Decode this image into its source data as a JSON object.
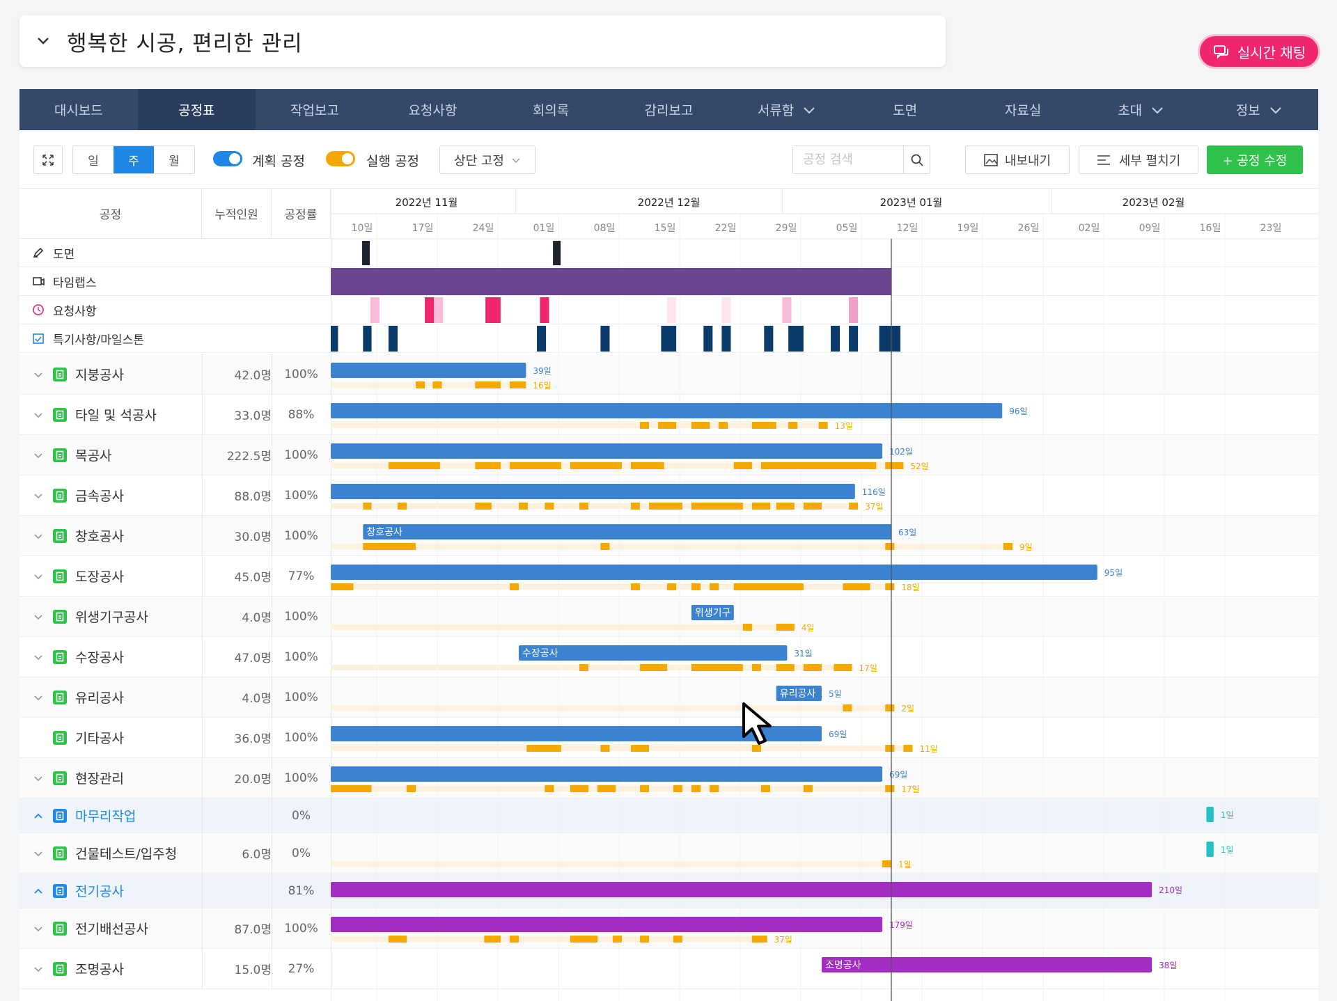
{
  "header": {
    "title": "행복한 시공, 편리한 관리",
    "chat_label": "실시간 채팅"
  },
  "nav": {
    "items": [
      {
        "label": "대시보드",
        "dropdown": false,
        "active": false
      },
      {
        "label": "공정표",
        "dropdown": false,
        "active": true
      },
      {
        "label": "작업보고",
        "dropdown": false,
        "active": false
      },
      {
        "label": "요청사항",
        "dropdown": false,
        "active": false
      },
      {
        "label": "회의록",
        "dropdown": false,
        "active": false
      },
      {
        "label": "감리보고",
        "dropdown": false,
        "active": false
      },
      {
        "label": "서류함",
        "dropdown": true,
        "active": false
      },
      {
        "label": "도면",
        "dropdown": false,
        "active": false
      },
      {
        "label": "자료실",
        "dropdown": false,
        "active": false
      },
      {
        "label": "초대",
        "dropdown": true,
        "active": false
      },
      {
        "label": "정보",
        "dropdown": true,
        "active": false
      }
    ]
  },
  "toolbar": {
    "view_day": "일",
    "view_week": "주",
    "view_month": "월",
    "plan_label": "계획 공정",
    "actual_label": "실행 공정",
    "fix_label": "상단 고정",
    "search_placeholder": "공정 검색",
    "export_label": "내보내기",
    "expand_label": "세부 펼치기",
    "edit_label": "+ 공정 수정"
  },
  "table_headers": {
    "name": "공정",
    "workers": "누적인원",
    "rate": "공정률"
  },
  "timeline": {
    "months": [
      {
        "label": "2022년 11월",
        "tick": 1.5
      },
      {
        "label": "2022년 12월",
        "tick": 5.5
      },
      {
        "label": "2023년 01월",
        "tick": 9.5
      },
      {
        "label": "2023년 02월",
        "tick": 13.5
      }
    ],
    "weeks": [
      "10일",
      "17일",
      "24일",
      "01일",
      "08일",
      "15일",
      "22일",
      "29일",
      "05일",
      "12일",
      "19일",
      "26일",
      "02일",
      "09일",
      "16일",
      "23일"
    ],
    "today_week": 9.0
  },
  "special_rows": [
    {
      "label": "도면",
      "icon": "pen-icon",
      "icon_color": "#333"
    },
    {
      "label": "타임랩스",
      "icon": "video-icon",
      "icon_color": "#333"
    },
    {
      "label": "요청사항",
      "icon": "request-icon",
      "icon_color": "#e0398a"
    },
    {
      "label": "특기사항/마일스톤",
      "icon": "calendar-check-icon",
      "icon_color": "#1f87e5"
    }
  ],
  "special_marks": {
    "drawings": [
      0.15,
      3.3
    ],
    "timelapse": [
      0.0,
      9.0
    ],
    "requests": [
      [
        0.4,
        0.55,
        "#f8bbd9"
      ],
      [
        1.3,
        1.45,
        "#f0266e"
      ],
      [
        1.45,
        1.6,
        "#f8bbd9"
      ],
      [
        2.3,
        2.55,
        "#f0266e"
      ],
      [
        3.2,
        3.35,
        "#f0266e"
      ],
      [
        5.3,
        5.45,
        "#fde4ef"
      ],
      [
        6.2,
        6.35,
        "#fde4ef"
      ],
      [
        7.2,
        7.35,
        "#f8bbd9"
      ],
      [
        8.3,
        8.45,
        "#f0a0c8"
      ]
    ],
    "milestones": [
      [
        0.0,
        0.12
      ],
      [
        0.28,
        0.42
      ],
      [
        0.7,
        0.85
      ],
      [
        3.15,
        3.3
      ],
      [
        4.2,
        4.35
      ],
      [
        5.2,
        5.45
      ],
      [
        5.9,
        6.05
      ],
      [
        6.2,
        6.35
      ],
      [
        6.9,
        7.05
      ],
      [
        7.3,
        7.55
      ],
      [
        8.0,
        8.15
      ],
      [
        8.3,
        8.45
      ],
      [
        8.8,
        9.15
      ]
    ]
  },
  "tasks": [
    {
      "name": "지붕공사",
      "workers": "42.0명",
      "rate": "100%",
      "caret": "down",
      "icon_color": "#2ec24a",
      "plan": [
        0.0,
        2.97
      ],
      "plan_days": "39일",
      "plan_color": "#3b82d0",
      "bar_label": "",
      "actual": [
        [
          1.15,
          1.3
        ],
        [
          1.43,
          1.58
        ],
        [
          2.13,
          2.55
        ],
        [
          2.7,
          2.97
        ]
      ],
      "actual_days": "16일"
    },
    {
      "name": "타일 및 석공사",
      "workers": "33.0명",
      "rate": "88%",
      "caret": "down",
      "icon_color": "#2ec24a",
      "plan": [
        0.0,
        10.83
      ],
      "plan_days": "96일",
      "plan_color": "#3b82d0",
      "bar_label": "",
      "actual": [
        [
          4.85,
          5.0
        ],
        [
          5.15,
          5.45
        ],
        [
          5.7,
          6.0
        ],
        [
          6.15,
          6.3
        ],
        [
          6.7,
          7.1
        ],
        [
          7.3,
          7.45
        ],
        [
          7.8,
          7.95
        ]
      ],
      "actual_days": "13일"
    },
    {
      "name": "목공사",
      "workers": "222.5명",
      "rate": "100%",
      "caret": "down",
      "icon_color": "#2ec24a",
      "plan": [
        0.0,
        8.85
      ],
      "plan_days": "102일",
      "plan_color": "#3b82d0",
      "bar_label": "",
      "actual": [
        [
          0.7,
          1.55
        ],
        [
          2.13,
          2.55
        ],
        [
          2.7,
          3.55
        ],
        [
          3.7,
          4.55
        ],
        [
          4.7,
          5.25
        ],
        [
          6.4,
          6.7
        ],
        [
          6.85,
          8.75
        ],
        [
          8.9,
          9.2
        ]
      ],
      "actual_days": "52일"
    },
    {
      "name": "금속공사",
      "workers": "88.0명",
      "rate": "100%",
      "caret": "down",
      "icon_color": "#2ec24a",
      "plan": [
        0.0,
        8.4
      ],
      "plan_days": "116일",
      "plan_color": "#3b82d0",
      "bar_label": "",
      "actual": [
        [
          0.28,
          0.42
        ],
        [
          0.85,
          1.0
        ],
        [
          2.13,
          2.4
        ],
        [
          2.85,
          3.0
        ],
        [
          3.28,
          3.43
        ],
        [
          3.85,
          4.0
        ],
        [
          4.7,
          4.85
        ],
        [
          5.0,
          5.55
        ],
        [
          5.7,
          6.55
        ],
        [
          6.7,
          7.0
        ],
        [
          7.1,
          7.4
        ],
        [
          7.55,
          7.85
        ],
        [
          8.3,
          8.45
        ]
      ],
      "actual_days": "37일"
    },
    {
      "name": "창호공사",
      "workers": "30.0명",
      "rate": "100%",
      "caret": "down",
      "icon_color": "#2ec24a",
      "plan": [
        0.28,
        9.0
      ],
      "plan_days": "63일",
      "plan_color": "#3b82d0",
      "bar_label": "창호공사",
      "actual": [
        [
          0.28,
          1.15
        ],
        [
          4.2,
          4.35
        ],
        [
          8.9,
          9.05
        ],
        [
          10.85,
          11.0
        ]
      ],
      "actual_days": "9일"
    },
    {
      "name": "도장공사",
      "workers": "45.0명",
      "rate": "77%",
      "caret": "down",
      "icon_color": "#2ec24a",
      "plan": [
        0.0,
        12.4
      ],
      "plan_days": "95일",
      "plan_color": "#3b82d0",
      "bar_label": "",
      "actual": [
        [
          0.0,
          0.12
        ],
        [
          2.7,
          2.85
        ],
        [
          4.7,
          4.85
        ],
        [
          5.3,
          5.45
        ],
        [
          5.7,
          5.85
        ],
        [
          6.0,
          6.15
        ],
        [
          6.4,
          7.55
        ],
        [
          8.2,
          8.65
        ],
        [
          8.9,
          9.05
        ]
      ],
      "actual_days": "18일"
    },
    {
      "name": "위생기구공사",
      "workers": "4.0명",
      "rate": "100%",
      "caret": "down",
      "icon_color": "#2ec24a",
      "plan": [
        5.7,
        6.4
      ],
      "plan_days": "",
      "plan_color": "#3b82d0",
      "bar_label": "위생기구",
      "actual": [
        [
          6.55,
          6.7
        ],
        [
          7.1,
          7.4
        ]
      ],
      "actual_days": "4일"
    },
    {
      "name": "수장공사",
      "workers": "47.0명",
      "rate": "100%",
      "caret": "down",
      "icon_color": "#2ec24a",
      "plan": [
        2.85,
        7.28
      ],
      "plan_days": "31일",
      "plan_color": "#3b82d0",
      "bar_label": "수장공사",
      "actual": [
        [
          3.85,
          4.0
        ],
        [
          4.85,
          5.3
        ],
        [
          5.7,
          6.55
        ],
        [
          6.7,
          6.85
        ],
        [
          7.1,
          7.4
        ],
        [
          7.55,
          7.85
        ],
        [
          8.05,
          8.35
        ]
      ],
      "actual_days": "17일"
    },
    {
      "name": "유리공사",
      "workers": "4.0명",
      "rate": "100%",
      "caret": "down",
      "icon_color": "#2ec24a",
      "plan": [
        7.1,
        7.85
      ],
      "plan_days": "5일",
      "plan_color": "#3b82d0",
      "bar_label": "유리공사",
      "actual": [
        [
          8.2,
          8.35
        ],
        [
          8.9,
          9.05
        ]
      ],
      "actual_days": "2일"
    },
    {
      "name": "기타공사",
      "workers": "36.0명",
      "rate": "100%",
      "caret": "none",
      "icon_color": "#2ec24a",
      "plan": [
        0.0,
        7.85
      ],
      "plan_days": "69일",
      "plan_color": "#3b82d0",
      "bar_label": "",
      "actual": [
        [
          2.98,
          3.55
        ],
        [
          4.2,
          4.35
        ],
        [
          4.7,
          5.0
        ],
        [
          6.7,
          6.85
        ],
        [
          8.9,
          9.05
        ],
        [
          9.2,
          9.35
        ]
      ],
      "actual_days": "11일"
    },
    {
      "name": "현장관리",
      "workers": "20.0명",
      "rate": "100%",
      "caret": "down",
      "icon_color": "#2ec24a",
      "plan": [
        0.0,
        8.85
      ],
      "plan_days": "69일",
      "plan_color": "#3b82d0",
      "bar_label": "",
      "actual": [
        [
          0.0,
          0.42
        ],
        [
          1.0,
          1.15
        ],
        [
          3.28,
          3.43
        ],
        [
          3.7,
          4.0
        ],
        [
          4.15,
          4.45
        ],
        [
          4.85,
          5.0
        ],
        [
          5.4,
          5.55
        ],
        [
          5.7,
          5.85
        ],
        [
          6.0,
          6.15
        ],
        [
          6.85,
          7.0
        ],
        [
          7.55,
          7.7
        ],
        [
          8.9,
          9.05
        ]
      ],
      "actual_days": "17일"
    },
    {
      "name": "마무리작업",
      "workers": "",
      "rate": "0%",
      "caret": "up",
      "icon_color": "#1f87e5",
      "group": true,
      "plan": [
        14.2,
        14.32
      ],
      "plan_days": "1일",
      "plan_color": "#22c1c3",
      "bar_label": "",
      "actual": [],
      "actual_days": ""
    },
    {
      "name": "건물테스트/입주청",
      "workers": "6.0명",
      "rate": "0%",
      "caret": "down",
      "icon_color": "#2ec24a",
      "plan": [
        14.2,
        14.32
      ],
      "plan_days": "1일",
      "plan_color": "#22c1c3",
      "bar_label": "",
      "actual": [
        [
          8.85,
          9.0
        ]
      ],
      "actual_days": "1일"
    },
    {
      "name": "전기공사",
      "workers": "",
      "rate": "81%",
      "caret": "up",
      "icon_color": "#1f87e5",
      "group": true,
      "plan": [
        0.0,
        13.3
      ],
      "plan_days": "210일",
      "plan_color": "#a32cc4",
      "bar_label": "",
      "actual": [],
      "actual_days": ""
    },
    {
      "name": "전기배선공사",
      "workers": "87.0명",
      "rate": "100%",
      "caret": "down",
      "icon_color": "#2ec24a",
      "plan": [
        0.0,
        8.85
      ],
      "plan_days": "179일",
      "plan_color": "#a32cc4",
      "bar_label": "",
      "actual": [
        [
          0.7,
          1.0
        ],
        [
          2.28,
          2.55
        ],
        [
          2.7,
          2.85
        ],
        [
          3.7,
          4.15
        ],
        [
          4.4,
          4.55
        ],
        [
          4.85,
          5.0
        ],
        [
          5.4,
          5.55
        ],
        [
          6.7,
          6.95
        ]
      ],
      "actual_days": "37일"
    },
    {
      "name": "조명공사",
      "workers": "15.0명",
      "rate": "27%",
      "caret": "down",
      "icon_color": "#2ec24a",
      "plan": [
        7.85,
        13.3
      ],
      "plan_days": "38일",
      "plan_color": "#a32cc4",
      "bar_label": "조명공사",
      "actual": [],
      "actual_days": ""
    }
  ]
}
